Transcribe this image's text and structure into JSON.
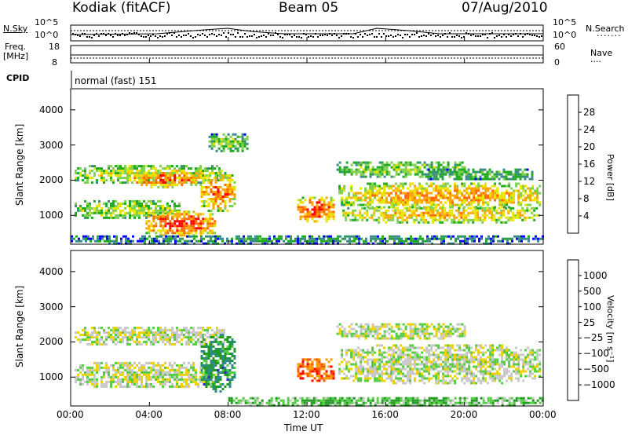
{
  "header": {
    "title": "Kodiak (fitACF)",
    "beam": "Beam 05",
    "date": "07/Aug/2010"
  },
  "noise_panel": {
    "left_label": "N.Sky",
    "right_label": "N.Search",
    "ticks_left": [
      "10^5",
      "10^0"
    ],
    "ticks_right": [
      "10^5",
      "10^0"
    ]
  },
  "freq_panel": {
    "left_label_1": "Freq.",
    "left_label_2": "[MHz]",
    "right_label": "Nave",
    "ticks_left": [
      "18",
      "8"
    ],
    "ticks_right": [
      "60",
      "0"
    ]
  },
  "cpid": {
    "label": "CPID",
    "text": "normal (fast) 151"
  },
  "colors": {
    "power": [
      "#0000ff",
      "#3c8b8b",
      "#1faa1f",
      "#7fd04a",
      "#e8e400",
      "#ffa500",
      "#ff6a00",
      "#ff0000"
    ],
    "velocity": [
      "#2a2ad0",
      "#2f8a8a",
      "#1f9b1f",
      "#55cc44",
      "#c8c8c8",
      "#e8d200",
      "#ff9900",
      "#ff5500",
      "#ff0000"
    ]
  },
  "chart_data": [
    {
      "type": "heatmap",
      "panel": "power",
      "ylabel": "Slant Range [km]",
      "y_ticks": [
        "4000",
        "3000",
        "2000",
        "1000"
      ],
      "y_tick_values": [
        4000,
        3000,
        2000,
        1000
      ],
      "ylim": [
        180,
        4600
      ],
      "xlim": [
        0,
        24
      ],
      "colorbar_label": "Power [dB]",
      "colorbar_ticks": [
        "28",
        "24",
        "20",
        "16",
        "12",
        "8",
        "4"
      ],
      "colorbar_range": [
        0,
        32
      ],
      "echo_regions": [
        {
          "t": [
            0.2,
            7.8
          ],
          "r": [
            1900,
            2500
          ],
          "level": 0.55
        },
        {
          "t": [
            3.2,
            6.6
          ],
          "r": [
            1800,
            2300
          ],
          "level": 0.9
        },
        {
          "t": [
            0.2,
            5.5
          ],
          "r": [
            900,
            1500
          ],
          "level": 0.5
        },
        {
          "t": [
            3.8,
            7.3
          ],
          "r": [
            400,
            1200
          ],
          "level": 0.95
        },
        {
          "t": [
            6.6,
            8.3
          ],
          "r": [
            1100,
            2300
          ],
          "level": 0.85
        },
        {
          "t": [
            7.0,
            9.0
          ],
          "r": [
            2800,
            3400
          ],
          "level": 0.4
        },
        {
          "t": [
            11.5,
            13.4
          ],
          "r": [
            800,
            1600
          ],
          "level": 0.95
        },
        {
          "t": [
            13.6,
            23.8
          ],
          "r": [
            1200,
            2000
          ],
          "level": 0.75
        },
        {
          "t": [
            13.8,
            23.8
          ],
          "r": [
            800,
            1300
          ],
          "level": 0.7
        },
        {
          "t": [
            13.5,
            20.0
          ],
          "r": [
            2100,
            2600
          ],
          "level": 0.45
        },
        {
          "t": [
            18.0,
            23.5
          ],
          "r": [
            2000,
            2400
          ],
          "level": 0.3
        },
        {
          "t": [
            0.0,
            24.0
          ],
          "r": [
            200,
            500
          ],
          "level": 0.2
        }
      ]
    },
    {
      "type": "heatmap",
      "panel": "velocity",
      "xlabel": "Time UT",
      "ylabel": "Slant Range [km]",
      "y_ticks": [
        "4000",
        "3000",
        "2000",
        "1000"
      ],
      "y_tick_values": [
        4000,
        3000,
        2000,
        1000
      ],
      "ylim": [
        180,
        4600
      ],
      "xlim": [
        0,
        24
      ],
      "x_ticks": [
        "00:00",
        "04:00",
        "08:00",
        "12:00",
        "16:00",
        "20:00",
        "00:00"
      ],
      "x_tick_values": [
        0,
        4,
        8,
        12,
        16,
        20,
        24
      ],
      "colorbar_label": "Velocity [m s⁻¹]",
      "colorbar_ticks": [
        "1000",
        "500",
        "100",
        "25",
        "−25",
        "−100",
        "−500",
        "−1000"
      ],
      "echo_regions": [
        {
          "t": [
            0.2,
            7.8
          ],
          "r": [
            1900,
            2500
          ],
          "level": 0.5
        },
        {
          "t": [
            0.2,
            7.3
          ],
          "r": [
            700,
            1500
          ],
          "level": 0.5
        },
        {
          "t": [
            6.6,
            8.3
          ],
          "r": [
            600,
            2300
          ],
          "level": 0.2
        },
        {
          "t": [
            11.5,
            13.4
          ],
          "r": [
            900,
            1600
          ],
          "level": 0.85
        },
        {
          "t": [
            13.6,
            23.8
          ],
          "r": [
            800,
            2000
          ],
          "level": 0.5
        },
        {
          "t": [
            13.5,
            20.0
          ],
          "r": [
            2100,
            2600
          ],
          "level": 0.5
        },
        {
          "t": [
            8.0,
            24.0
          ],
          "r": [
            200,
            500
          ],
          "level": 0.35
        }
      ]
    }
  ]
}
